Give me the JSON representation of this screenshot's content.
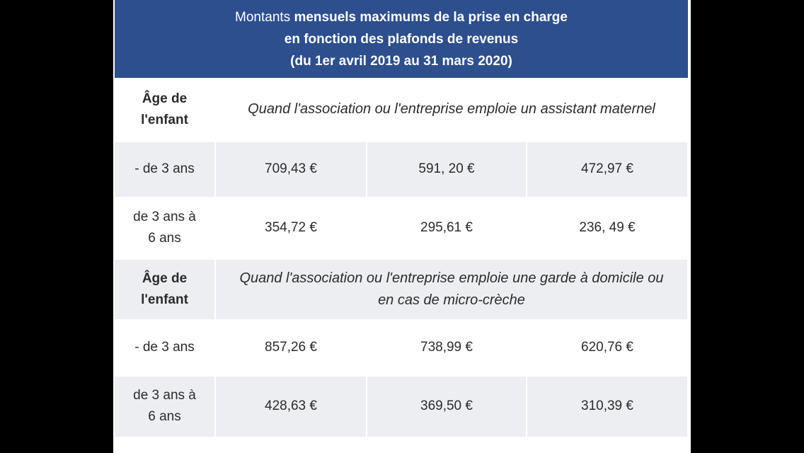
{
  "title": {
    "line1_prefix": "Montants ",
    "line1_bold": "mensuels maximums de la prise en charge",
    "line2": "en fonction des plafonds de revenus",
    "line3": "(du 1er avril 2019 au 31 mars 2020)"
  },
  "sections": [
    {
      "age_header": [
        "Âge de",
        "l'enfant"
      ],
      "description": "Quand l'association ou l'entreprise emploie un assistant maternel",
      "rows": [
        {
          "age": [
            "- de 3 ans"
          ],
          "values": [
            "709,43 €",
            "591, 20 €",
            "472,97 €"
          ]
        },
        {
          "age": [
            "de 3 ans à",
            "6 ans"
          ],
          "values": [
            "354,72 €",
            "295,61 €",
            "236, 49 €"
          ]
        }
      ]
    },
    {
      "age_header": [
        "Âge de",
        "l'enfant"
      ],
      "description": "Quand l'association ou l'entreprise emploie une garde à domicile ou en cas de micro-crèche",
      "rows": [
        {
          "age": [
            "- de 3 ans"
          ],
          "values": [
            "857,26 €",
            "738,99 €",
            "620,76 €"
          ]
        },
        {
          "age": [
            "de 3 ans à",
            "6 ans"
          ],
          "values": [
            "428,63 €",
            "369,50 €",
            "310,39 €"
          ]
        }
      ]
    }
  ],
  "colors": {
    "banner": "#2d4f8e",
    "row_shade": "#eceef2",
    "background": "#000000"
  }
}
